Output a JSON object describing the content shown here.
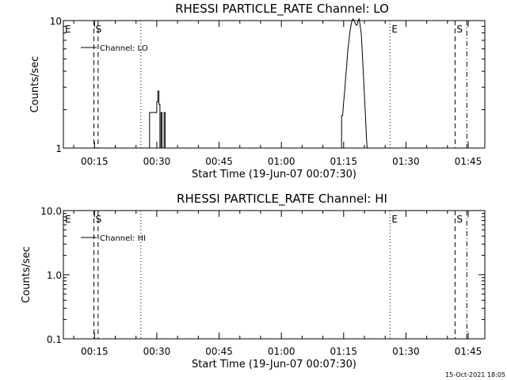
{
  "chart_data": [
    {
      "type": "line",
      "scale": "log",
      "title": "RHESSI PARTICLE_RATE Channel: LO",
      "xlabel": "Start Time (19-Jun-07 00:07:30)",
      "ylabel": "Counts/sec",
      "xlim": [
        "00:07:30",
        "01:49:00"
      ],
      "ylim": [
        1,
        10
      ],
      "x_ticks": [
        "00:15",
        "00:30",
        "00:45",
        "01:00",
        "01:15",
        "01:30",
        "01:45"
      ],
      "y_ticks": [
        "1",
        "10"
      ],
      "legend": {
        "position": "top-left",
        "entries": [
          "Channel: LO"
        ]
      },
      "markers": [
        {
          "label": "E",
          "time": "00:07:30",
          "style": "none"
        },
        {
          "label": "S",
          "time": "00:14:52",
          "style": "dashed"
        },
        {
          "label": "",
          "time": "00:15:52",
          "style": "dashed"
        },
        {
          "label": "",
          "time": "00:26:10",
          "style": "dotted"
        },
        {
          "label": "E",
          "time": "01:26:10",
          "style": "dotted"
        },
        {
          "label": "S",
          "time": "01:41:50",
          "style": "dashed"
        },
        {
          "label": "",
          "time": "01:44:40",
          "style": "dashdot"
        }
      ],
      "series": [
        {
          "name": "Channel: LO",
          "segments": [
            [
              [
                "00:28:15",
                1
              ],
              [
                "00:28:15",
                1.9
              ],
              [
                "00:30:00",
                1.9
              ],
              [
                "00:30:00",
                2.3
              ],
              [
                "00:30:15",
                2.3
              ],
              [
                "00:30:15",
                2.8
              ],
              [
                "00:30:30",
                2.8
              ],
              [
                "00:30:30",
                2.2
              ],
              [
                "00:30:45",
                2.2
              ],
              [
                "00:30:45",
                1
              ]
            ],
            [
              [
                "00:31:00",
                1
              ],
              [
                "00:31:00",
                1.9
              ],
              [
                "00:31:15",
                1.9
              ],
              [
                "00:31:15",
                1
              ]
            ],
            [
              [
                "00:31:45",
                1
              ],
              [
                "00:31:45",
                1.9
              ],
              [
                "00:32:00",
                1.9
              ],
              [
                "00:32:00",
                1
              ]
            ],
            [
              [
                "01:14:30",
                1
              ],
              [
                "01:14:30",
                1.8
              ],
              [
                "01:14:45",
                1.8
              ],
              [
                "01:15:00",
                2.3
              ],
              [
                "01:15:15",
                2.8
              ],
              [
                "01:15:30",
                3.6
              ],
              [
                "01:15:45",
                4.5
              ],
              [
                "01:16:00",
                5.8
              ],
              [
                "01:16:15",
                6.8
              ],
              [
                "01:16:30",
                8.2
              ],
              [
                "01:16:45",
                9.1
              ],
              [
                "01:17:00",
                10
              ],
              [
                "01:17:15",
                10.3
              ],
              [
                "01:17:30",
                10
              ],
              [
                "01:18:00",
                9.2
              ],
              [
                "01:18:15",
                9.2
              ],
              [
                "01:18:30",
                10
              ],
              [
                "01:18:45",
                10.3
              ],
              [
                "01:19:00",
                9
              ],
              [
                "01:19:15",
                7.8
              ],
              [
                "01:19:30",
                5.5
              ],
              [
                "01:19:45",
                3.8
              ],
              [
                "01:20:00",
                2.6
              ],
              [
                "01:20:15",
                1.8
              ],
              [
                "01:20:30",
                1.2
              ],
              [
                "01:20:40",
                1
              ]
            ]
          ]
        }
      ]
    },
    {
      "type": "line",
      "scale": "log",
      "title": "RHESSI PARTICLE_RATE Channel: HI",
      "xlabel": "Start Time (19-Jun-07 00:07:30)",
      "ylabel": "Counts/sec",
      "xlim": [
        "00:07:30",
        "01:49:00"
      ],
      "ylim": [
        0.1,
        10
      ],
      "x_ticks": [
        "00:15",
        "00:30",
        "00:45",
        "01:00",
        "01:15",
        "01:30",
        "01:45"
      ],
      "y_ticks": [
        "0.1",
        "1.0",
        "10.0"
      ],
      "legend": {
        "position": "top-left",
        "entries": [
          "Channel: HI"
        ]
      },
      "markers": [
        {
          "label": "E",
          "time": "00:07:30",
          "style": "none"
        },
        {
          "label": "S",
          "time": "00:14:52",
          "style": "dashed"
        },
        {
          "label": "",
          "time": "00:15:52",
          "style": "dashed"
        },
        {
          "label": "",
          "time": "00:26:10",
          "style": "dotted"
        },
        {
          "label": "E",
          "time": "01:26:10",
          "style": "dotted"
        },
        {
          "label": "S",
          "time": "01:41:50",
          "style": "dashed"
        },
        {
          "label": "",
          "time": "01:44:40",
          "style": "dashdot"
        }
      ],
      "series": [
        {
          "name": "Channel: HI",
          "segments": []
        }
      ]
    }
  ],
  "footer": {
    "timestamp": "15-Oct-2021 18:05"
  }
}
